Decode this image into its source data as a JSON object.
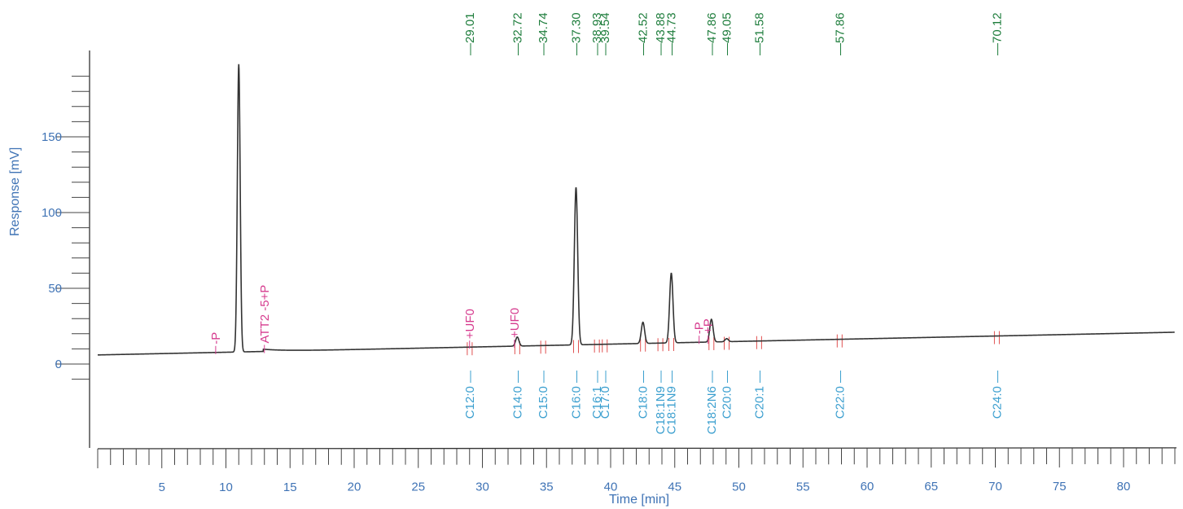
{
  "chart_data": {
    "type": "line",
    "xlabel": "Time [min]",
    "ylabel": "Response [mV]",
    "xlim": [
      0,
      84
    ],
    "ylim": [
      -50,
      200
    ],
    "x_ticks": [
      5,
      10,
      15,
      20,
      25,
      30,
      35,
      40,
      45,
      50,
      55,
      60,
      65,
      70,
      75,
      80
    ],
    "y_ticks": [
      0,
      50,
      100,
      150
    ],
    "baseline": {
      "start_time": 0,
      "start_mV": 6,
      "end_time": 84,
      "end_mV": 21
    },
    "peaks": [
      {
        "time": 11.0,
        "height_mV": 190
      },
      {
        "time": 32.72,
        "height_mV": 6
      },
      {
        "time": 37.3,
        "height_mV": 104
      },
      {
        "time": 42.52,
        "height_mV": 14
      },
      {
        "time": 44.73,
        "height_mV": 46
      },
      {
        "time": 47.86,
        "height_mV": 15
      },
      {
        "time": 49.05,
        "height_mV": 2
      }
    ],
    "retention_times": [
      "29.01",
      "32.72",
      "34.74",
      "37.30",
      "38.93",
      "39.54",
      "42.52",
      "43.88",
      "44.73",
      "47.86",
      "49.05",
      "51.58",
      "57.86",
      "70.12"
    ],
    "peak_names": [
      {
        "label": "C12:0",
        "time": 29.01
      },
      {
        "label": "C14:0",
        "time": 32.72
      },
      {
        "label": "C15:0",
        "time": 34.74
      },
      {
        "label": "C16:0",
        "time": 37.3
      },
      {
        "label": "C16:1",
        "time": 38.93
      },
      {
        "label": "C17:0",
        "time": 39.54
      },
      {
        "label": "C18:0",
        "time": 42.52
      },
      {
        "label": "C18:1N9",
        "time": 43.88
      },
      {
        "label": "C18:1N9",
        "time": 44.73
      },
      {
        "label": "C18:2N6",
        "time": 47.86
      },
      {
        "label": "C20:0",
        "time": 49.05
      },
      {
        "label": "C20:1",
        "time": 51.58
      },
      {
        "label": "C22:0",
        "time": 57.86
      },
      {
        "label": "C24:0",
        "time": 70.12
      }
    ],
    "events": [
      {
        "label": "-P",
        "time": 9.2
      },
      {
        "label": "ATT2 -5+P",
        "time": 13.0
      },
      {
        "label": "+UF0",
        "time": 29.0
      },
      {
        "label": "+UF0",
        "time": 32.5
      },
      {
        "label": "-P",
        "time": 46.9
      },
      {
        "label": "+P",
        "time": 47.6
      }
    ],
    "colors": {
      "trace": "#333333",
      "axis_text": "#3f73b5",
      "retention_labels": "#1e7d3c",
      "peak_labels": "#3b9fcf",
      "event_labels": "#d63b8e",
      "markers": "#e05050"
    }
  }
}
